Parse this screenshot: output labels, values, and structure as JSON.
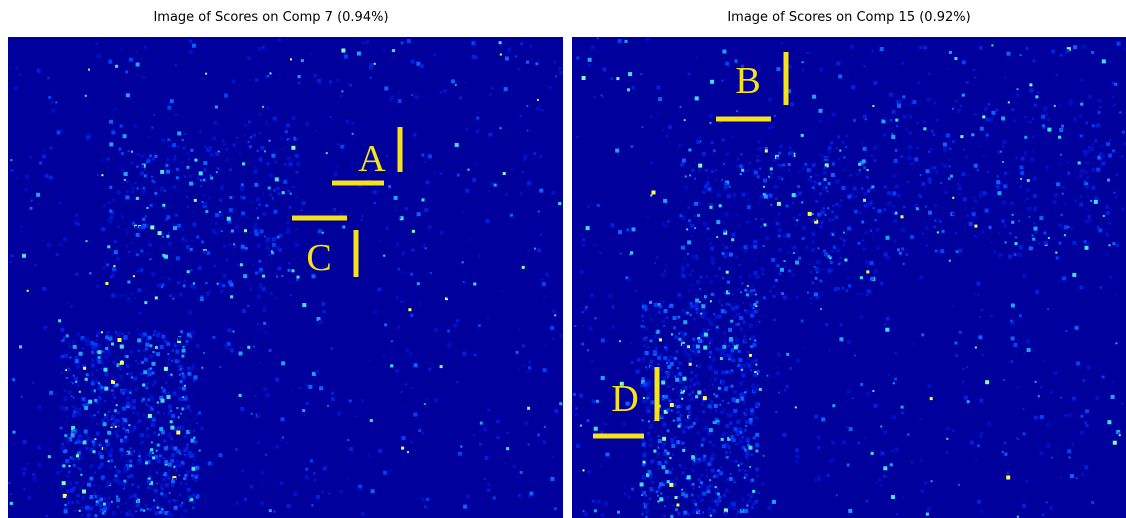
{
  "panels": [
    {
      "title": "Image of Scores on Comp 7 (0.94%)",
      "labels": [
        "A",
        "C"
      ]
    },
    {
      "title": "Image of Scores on Comp 15 (0.92%)",
      "labels": [
        "B",
        "D"
      ]
    }
  ]
}
